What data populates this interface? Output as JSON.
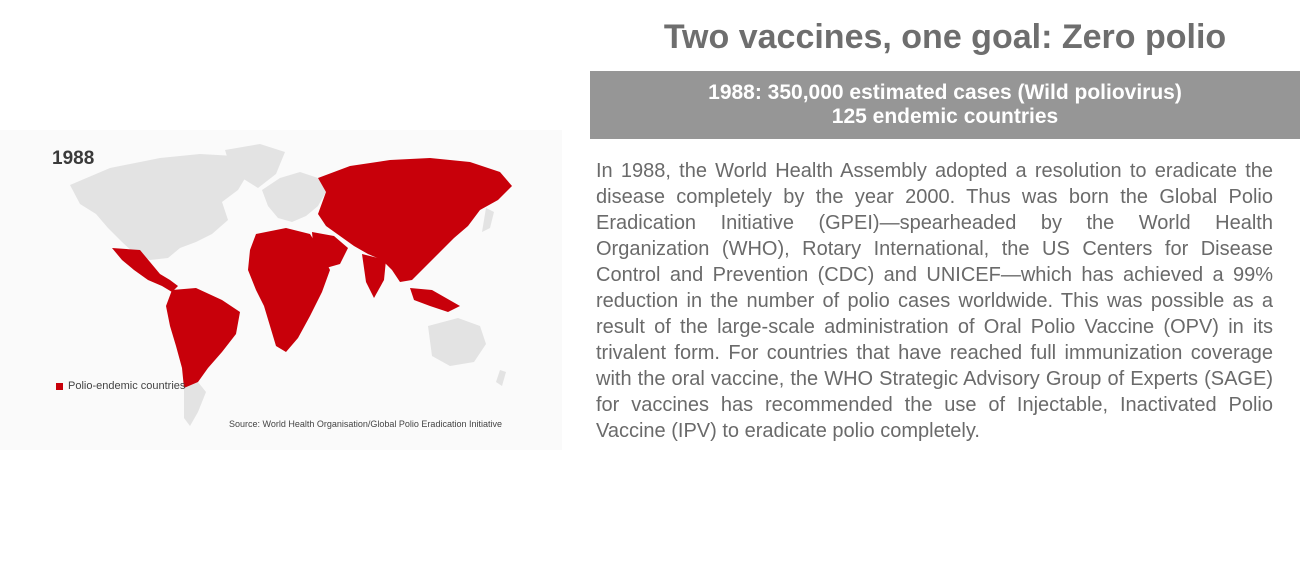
{
  "map": {
    "year": "1988",
    "legend": {
      "label": "Polio-endemic countries",
      "color": "#c8000a"
    },
    "source": "Source: World Health Organisation/Global Polio Eradication Initiative",
    "colors": {
      "endemic": "#c8000a",
      "non_endemic": "#e3e3e3",
      "background": "#fafafa"
    }
  },
  "headline": "Two vaccines, one goal: Zero polio",
  "banner": {
    "line1": "1988: 350,000 estimated cases (Wild poliovirus)",
    "line2": "125 endemic countries",
    "color": "#969696"
  },
  "body_text": "In 1988, the World Health Assembly adopted a resolution to eradicate the disease completely by the year 2000. Thus was born the Global Polio Eradication Initiative (GPEI)—spearheaded by the World Health Organization (WHO), Rotary International, the US Centers for Disease Control and Prevention (CDC) and UNICEF—which has achieved a 99% reduction in the number of polio cases worldwide. This was possible as a result of the large-scale administration of Oral Polio Vaccine (OPV) in its trivalent form. For countries that have reached full immunization coverage with the oral vaccine, the WHO Strategic Advisory Group of Experts (SAGE) for vaccines has recommended the use of Injectable, Inactivated Polio Vaccine (IPV) to eradicate polio completely."
}
